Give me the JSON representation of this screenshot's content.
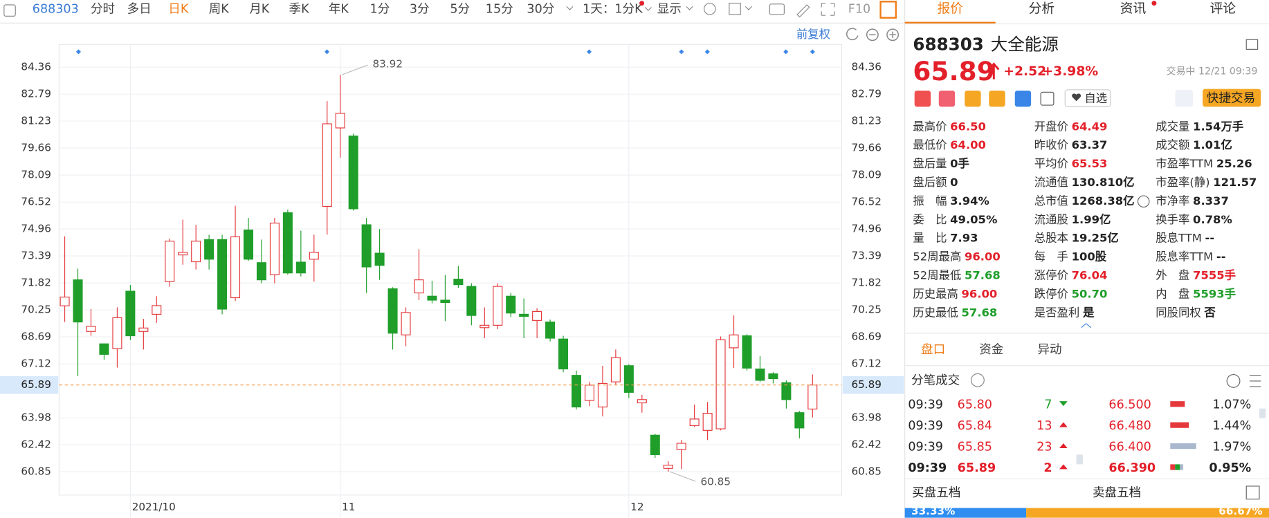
{
  "toolbar": {
    "code": "688303",
    "periods": [
      "分时",
      "多日",
      "日K",
      "周K",
      "月K",
      "季K",
      "年K",
      "1分",
      "3分",
      "5分",
      "15分",
      "30分"
    ],
    "active": "日K",
    "interval": "1天：1分K",
    "display": "显示",
    "f10": "F10"
  },
  "tabs": {
    "items": [
      "报价",
      "分析",
      "资讯",
      "评论"
    ],
    "active": "报价"
  },
  "chart_data": {
    "type": "candlestick",
    "adjust_label": "前复权",
    "categories": [
      null,
      null,
      null,
      null,
      null,
      "2021/10",
      null,
      null,
      null,
      null,
      null,
      null,
      null,
      null,
      null,
      null,
      null,
      null,
      null,
      null,
      null,
      "11",
      null,
      null,
      null,
      null,
      null,
      null,
      null,
      null,
      null,
      null,
      null,
      null,
      null,
      null,
      null,
      null,
      null,
      null,
      null,
      null,
      null,
      "12",
      null,
      null,
      null,
      null,
      null,
      null,
      null,
      null,
      null,
      null,
      null,
      null,
      null,
      null
    ],
    "open": [
      70.49,
      72.0,
      69.0,
      68.28,
      68.0,
      71.34,
      69.0,
      70.0,
      71.9,
      73.45,
      73.05,
      74.34,
      74.34,
      70.96,
      74.9,
      73.0,
      72.3,
      75.9,
      73.03,
      73.2,
      76.27,
      80.83,
      80.36,
      75.2,
      73.55,
      71.48,
      68.8,
      71.24,
      71.05,
      70.82,
      72.04,
      71.62,
      69.22,
      69.36,
      71.05,
      70.0,
      69.64,
      69.55,
      68.56,
      66.45,
      64.99,
      64.61,
      66.07,
      67.01,
      64.85,
      62.97,
      61.04,
      62.14,
      63.53,
      63.25,
      63.34,
      68.05,
      68.75,
      66.82,
      66.54,
      66.02,
      64.28,
      64.49
    ],
    "high": [
      74.53,
      72.65,
      70.3,
      68.28,
      70.4,
      71.7,
      69.73,
      71.05,
      74.4,
      75.5,
      75.2,
      74.62,
      74.62,
      76.3,
      75.6,
      74.34,
      75.6,
      76.08,
      74.86,
      74.62,
      82.39,
      83.92,
      80.5,
      75.6,
      74.95,
      71.57,
      70.4,
      73.78,
      71.95,
      72.28,
      72.8,
      71.8,
      70.4,
      71.8,
      71.24,
      70.92,
      70.35,
      69.69,
      68.75,
      66.73,
      66.07,
      67.0,
      67.95,
      67.1,
      65.32,
      63.06,
      61.46,
      62.69,
      64.75,
      64.9,
      68.71,
      69.93,
      68.84,
      67.57,
      66.63,
      66.16,
      64.38,
      66.5
    ],
    "low": [
      69.55,
      66.4,
      68.75,
      67.35,
      66.9,
      68.5,
      67.95,
      69.5,
      71.6,
      72.88,
      72.6,
      72.6,
      70.0,
      70.77,
      73.1,
      71.8,
      71.8,
      72.3,
      72.2,
      71.9,
      74.63,
      79.1,
      76.03,
      71.24,
      72.0,
      67.95,
      68.14,
      70.82,
      70.63,
      69.6,
      71.53,
      69.36,
      68.61,
      69.13,
      69.83,
      68.61,
      68.61,
      68.42,
      66.63,
      64.47,
      64.66,
      64.06,
      65.88,
      65.13,
      64.28,
      61.65,
      60.85,
      61.0,
      63.44,
      62.69,
      63.25,
      66.87,
      66.73,
      66.07,
      65.98,
      64.52,
      62.79,
      64.0
    ],
    "close": [
      71.0,
      69.55,
      69.3,
      67.67,
      69.8,
      68.75,
      69.2,
      70.5,
      74.25,
      73.6,
      74.25,
      73.2,
      70.3,
      74.5,
      73.2,
      72.0,
      75.3,
      72.4,
      72.4,
      73.6,
      81.07,
      81.68,
      76.13,
      72.75,
      72.84,
      68.9,
      70.1,
      72.0,
      70.82,
      70.68,
      71.72,
      69.93,
      69.36,
      71.62,
      70.07,
      69.88,
      70.16,
      68.61,
      66.82,
      64.61,
      65.88,
      65.98,
      67.48,
      65.46,
      65.04,
      61.84,
      61.23,
      62.5,
      63.91,
      64.24,
      68.52,
      68.8,
      66.87,
      66.16,
      66.26,
      65.04,
      63.39,
      65.89
    ],
    "up_color": "#e5383b",
    "down_color": "#1f9e2a",
    "ylim": [
      59.35,
      85.68
    ],
    "yticks": [
      84.36,
      82.79,
      81.23,
      79.66,
      78.09,
      76.52,
      74.96,
      73.39,
      71.82,
      70.25,
      68.69,
      67.12,
      63.98,
      62.42,
      60.85
    ],
    "last_price": 65.89,
    "grid": true
  },
  "quote": {
    "code": "688303",
    "name": "大全能源",
    "price": "65.89",
    "change": "+2.52",
    "change_pct": "+3.98%",
    "status": "交易中 12/21 09:39",
    "watch": "自选",
    "trade": "快捷交易"
  },
  "stats": [
    [
      {
        "label": "最高价",
        "value": "66.50",
        "color": "#e3202a"
      },
      {
        "label": "开盘价",
        "value": "64.49",
        "color": "#e3202a"
      },
      {
        "label": "成交量",
        "value": "1.54万手"
      }
    ],
    [
      {
        "label": "最低价",
        "value": "64.00",
        "color": "#e3202a"
      },
      {
        "label": "昨收价",
        "value": "63.37"
      },
      {
        "label": "成交额",
        "value": "1.01亿"
      }
    ],
    [
      {
        "label": "盘后量",
        "value": "0手"
      },
      {
        "label": "平均价",
        "value": "65.53",
        "color": "#e3202a"
      },
      {
        "label": "市盈率TTM",
        "value": "25.26"
      }
    ],
    [
      {
        "label": "盘后额",
        "value": "0"
      },
      {
        "label": "流通值",
        "value": "130.810亿"
      },
      {
        "label": "市盈率(静)",
        "value": "121.57"
      }
    ],
    [
      {
        "label": "振　幅",
        "value": "3.94%"
      },
      {
        "label": "总市值",
        "value": "1268.38亿"
      },
      {
        "label": "市净率",
        "value": "8.337"
      }
    ],
    [
      {
        "label": "委　比",
        "value": "49.05%"
      },
      {
        "label": "流通股",
        "value": "1.99亿"
      },
      {
        "label": "换手率",
        "value": "0.78%"
      }
    ],
    [
      {
        "label": "量　比",
        "value": "7.93"
      },
      {
        "label": "总股本",
        "value": "19.25亿"
      },
      {
        "label": "股息TTM",
        "value": "--"
      }
    ],
    [
      {
        "label": "52周最高",
        "value": "96.00",
        "color": "#e3202a"
      },
      {
        "label": "每　手",
        "value": "100股"
      },
      {
        "label": "股息率TTM",
        "value": "--"
      }
    ],
    [
      {
        "label": "52周最低",
        "value": "57.68",
        "color": "#1f9e2a"
      },
      {
        "label": "涨停价",
        "value": "76.04",
        "color": "#e3202a"
      },
      {
        "label": "外　盘",
        "value": "7555手",
        "color": "#e3202a"
      }
    ],
    [
      {
        "label": "历史最高",
        "value": "96.00",
        "color": "#e3202a"
      },
      {
        "label": "跌停价",
        "value": "50.70",
        "color": "#1f9e2a"
      },
      {
        "label": "内　盘",
        "value": "5593手",
        "color": "#1f9e2a"
      }
    ],
    [
      {
        "label": "历史最低",
        "value": "57.68",
        "color": "#1f9e2a"
      },
      {
        "label": "是否盈利",
        "value": "是"
      },
      {
        "label": "同股同权",
        "value": "否"
      }
    ]
  ],
  "subtabs": {
    "items": [
      "盘口",
      "资金",
      "异动"
    ],
    "active": "盘口"
  },
  "trades": {
    "title": "分笔成交",
    "rows": [
      {
        "time": "09:39",
        "price": "65.80",
        "volume": "7",
        "price2": "66.500",
        "pct": "1.07%",
        "color": "#1f9e2a"
      },
      {
        "time": "09:39",
        "price": "65.84",
        "volume": "13",
        "price2": "66.480",
        "pct": "1.44%",
        "color": "#e3202a"
      },
      {
        "time": "09:39",
        "price": "65.85",
        "volume": "23",
        "price2": "66.400",
        "pct": "1.97%",
        "color": "#e3202a"
      },
      {
        "time": "09:39",
        "price": "65.89",
        "volume": "2",
        "price2": "66.390",
        "pct": "0.95%",
        "color": "#e3202a"
      }
    ]
  },
  "order_book": {
    "buy_label": "买盘五档",
    "sell_label": "卖盘五档",
    "buy": {
      "value": 33.33,
      "label": "33.33%"
    },
    "sell": {
      "value": 66.67,
      "label": "66.67%"
    }
  }
}
